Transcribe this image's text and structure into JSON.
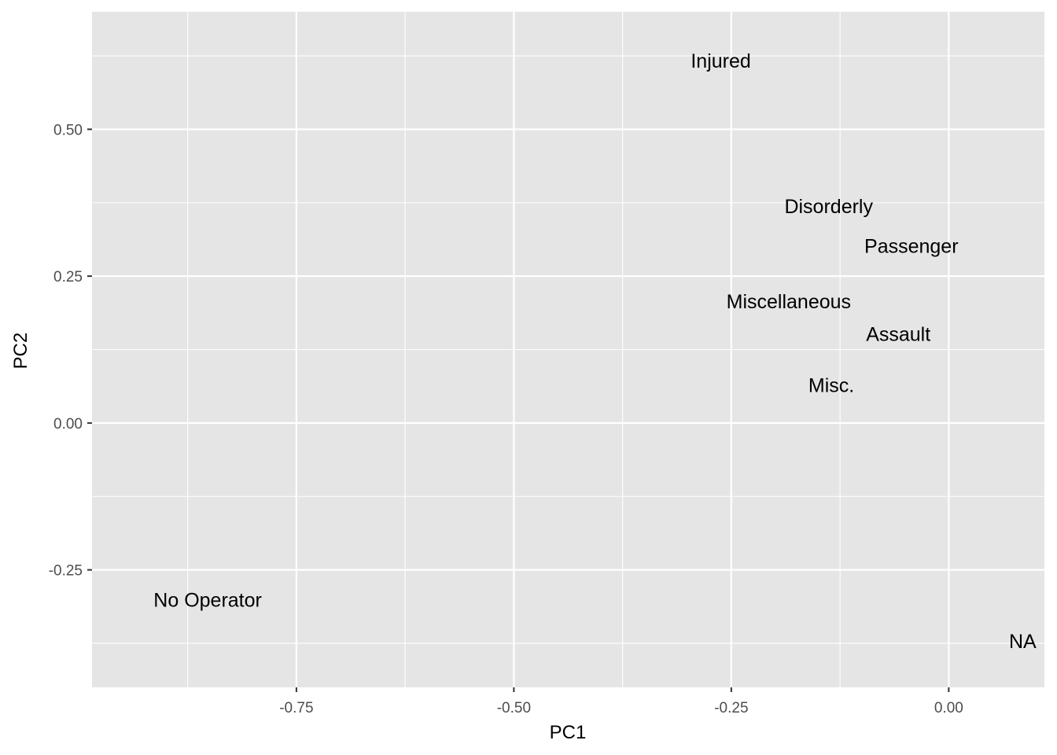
{
  "chart_data": {
    "type": "scatter",
    "xlabel": "PC1",
    "ylabel": "PC2",
    "xlim": [
      -0.985,
      0.11
    ],
    "ylim": [
      -0.45,
      0.7
    ],
    "x_ticks": [
      -0.75,
      -0.5,
      -0.25,
      0.0
    ],
    "x_tick_labels": [
      "-0.75",
      "-0.50",
      "-0.25",
      "0.00"
    ],
    "y_ticks": [
      -0.25,
      0.0,
      0.25,
      0.5
    ],
    "y_tick_labels": [
      "-0.25",
      "0.00",
      "0.25",
      "0.50"
    ],
    "grid": true,
    "points": [
      {
        "label": "Injured",
        "x": -0.262,
        "y": 0.617
      },
      {
        "label": "Disorderly",
        "x": -0.138,
        "y": 0.369
      },
      {
        "label": "Passenger",
        "x": -0.043,
        "y": 0.302
      },
      {
        "label": "Miscellaneous",
        "x": -0.184,
        "y": 0.207
      },
      {
        "label": "Assault",
        "x": -0.058,
        "y": 0.152
      },
      {
        "label": "Misc.",
        "x": -0.135,
        "y": 0.065
      },
      {
        "label": "No Operator",
        "x": -0.852,
        "y": -0.301
      },
      {
        "label": "NA",
        "x": 0.085,
        "y": -0.371
      }
    ]
  },
  "colors": {
    "panel": "#e5e5e5",
    "grid_major": "#ffffff",
    "tick_text": "#4d4d4d",
    "text": "#000000"
  }
}
